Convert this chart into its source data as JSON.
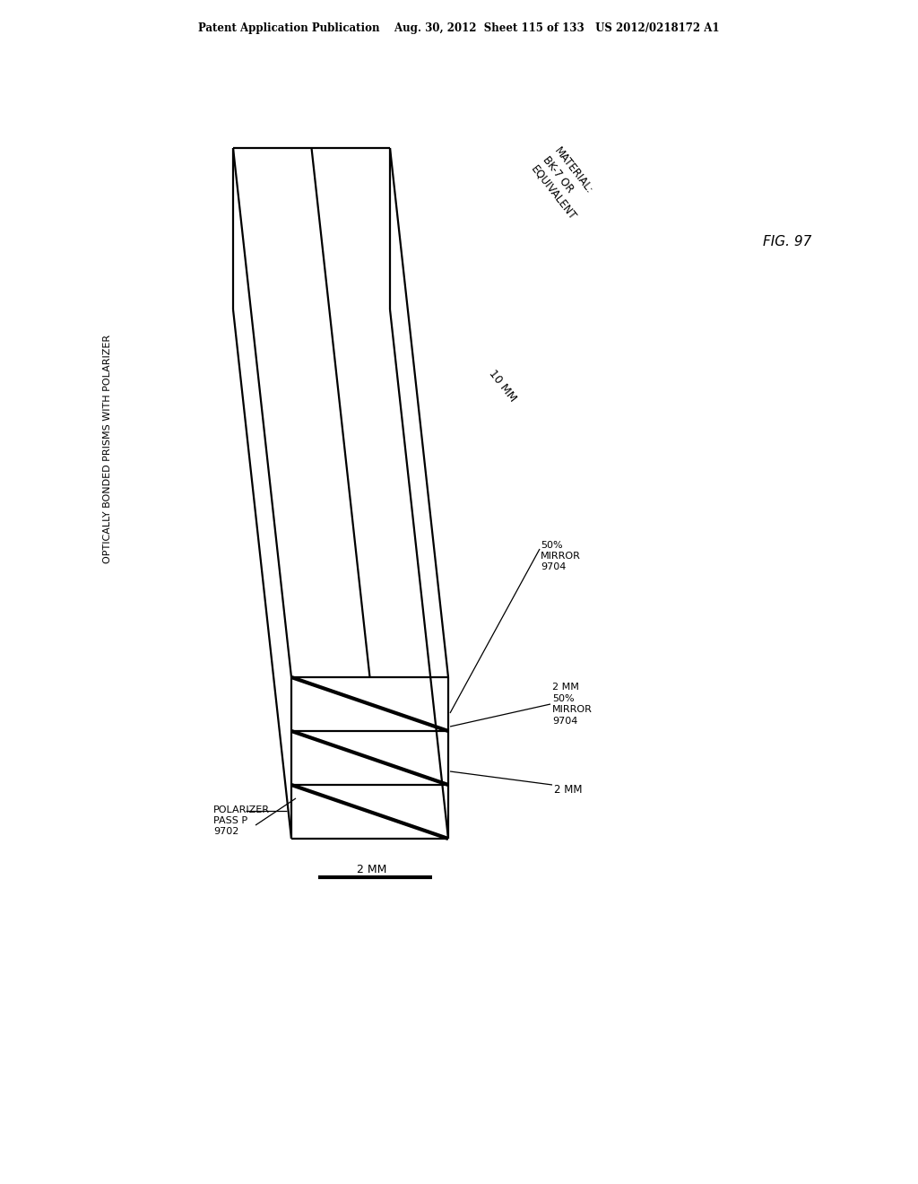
{
  "bg_color": "#ffffff",
  "header_text": "Patent Application Publication    Aug. 30, 2012  Sheet 115 of 133   US 2012/0218172 A1",
  "fig_label": "FIG. 97",
  "side_label": "OPTICALLY BONDED PRISMS WITH POLARIZER",
  "annotation_material": "MATERIAL:\nBK-7 OR\nEQUIVALENT",
  "annotation_10mm": "10 MM",
  "annotation_50mirror_top": "50%\nMIRROR\n9704",
  "annotation_2mm_50mirror": "2 MM\n50%\nMIRROR\n9704",
  "annotation_2mm_right": "2 MM",
  "annotation_polarizer": "POLARIZER\nPASS P\n9702",
  "annotation_2mm_bottom": "2 MM",
  "lw": 1.6,
  "lw_thick": 3.0,
  "lw_thin": 0.9,
  "lw_leader": 0.9,
  "lw_scale": 3.0
}
